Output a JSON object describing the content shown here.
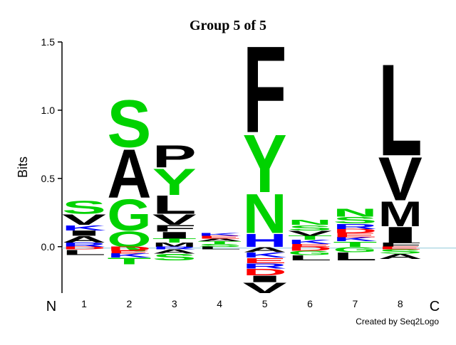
{
  "chart_data": {
    "type": "logo",
    "title": "Group 5 of 5",
    "y_label": "Bits",
    "start_label": "N",
    "end_label": "C",
    "credit": "Created by Seq2Logo",
    "ylim": [
      -0.34,
      1.5
    ],
    "yticks": [
      {
        "value": 0,
        "label": "0.0"
      },
      0.5,
      {
        "value": 1,
        "label": "1.0"
      },
      1.5
    ],
    "categories": [
      "1",
      "2",
      "3",
      "4",
      "5",
      "6",
      "7",
      "8"
    ],
    "stacks": [
      {
        "positive": [
          {
            "letter": "R",
            "color": "#0000ff",
            "bits": 0.03
          },
          {
            "letter": "A",
            "color": "#000000",
            "bits": 0.05
          },
          {
            "letter": "I",
            "color": "#000000",
            "bits": 0.04
          },
          {
            "letter": "K",
            "color": "#0000ff",
            "bits": 0.04
          },
          {
            "letter": "V",
            "color": "#000000",
            "bits": 0.08
          },
          {
            "letter": "S",
            "color": "#00d200",
            "bits": 0.1
          }
        ],
        "negative": [
          {
            "letter": "D",
            "color": "#ff0000",
            "bits": 0.02
          },
          {
            "letter": "L",
            "color": "#000000",
            "bits": 0.04
          }
        ]
      },
      {
        "positive": [
          {
            "letter": "Q",
            "color": "#00d200",
            "bits": 0.12
          },
          {
            "letter": "G",
            "color": "#00d200",
            "bits": 0.24
          },
          {
            "letter": "A",
            "color": "#000000",
            "bits": 0.37
          },
          {
            "letter": "S",
            "color": "#00d200",
            "bits": 0.36
          }
        ],
        "negative": [
          {
            "letter": "D",
            "color": "#ff0000",
            "bits": 0.03
          },
          {
            "letter": "E",
            "color": "#ff0000",
            "bits": 0.02
          },
          {
            "letter": "K",
            "color": "#0000ff",
            "bits": 0.03
          },
          {
            "letter": "T",
            "color": "#00d200",
            "bits": 0.05
          }
        ]
      },
      {
        "positive": [
          {
            "letter": "M",
            "color": "#000000",
            "bits": 0.03
          },
          {
            "letter": "T",
            "color": "#00d200",
            "bits": 0.03
          },
          {
            "letter": "I",
            "color": "#000000",
            "bits": 0.05
          },
          {
            "letter": "F",
            "color": "#000000",
            "bits": 0.05
          },
          {
            "letter": "V",
            "color": "#000000",
            "bits": 0.08
          },
          {
            "letter": "L",
            "color": "#000000",
            "bits": 0.14
          },
          {
            "letter": "Y",
            "color": "#00d200",
            "bits": 0.2
          },
          {
            "letter": "P",
            "color": "#000000",
            "bits": 0.17
          }
        ],
        "negative": [
          {
            "letter": "R",
            "color": "#0000ff",
            "bits": 0.02
          },
          {
            "letter": "A",
            "color": "#000000",
            "bits": 0.03
          },
          {
            "letter": "S",
            "color": "#00d200",
            "bits": 0.05
          }
        ]
      },
      {
        "positive": [
          {
            "letter": "S",
            "color": "#00d200",
            "bits": 0.02
          },
          {
            "letter": "T",
            "color": "#00d200",
            "bits": 0.02
          },
          {
            "letter": "A",
            "color": "#000000",
            "bits": 0.02
          },
          {
            "letter": "E",
            "color": "#ff0000",
            "bits": 0.02
          },
          {
            "letter": "K",
            "color": "#0000ff",
            "bits": 0.02
          }
        ],
        "negative": [
          {
            "letter": "L",
            "color": "#000000",
            "bits": 0.02
          }
        ]
      },
      {
        "positive": [
          {
            "letter": "H",
            "color": "#0000ff",
            "bits": 0.1
          },
          {
            "letter": "N",
            "color": "#00d200",
            "bits": 0.3
          },
          {
            "letter": "Y",
            "color": "#00d200",
            "bits": 0.44
          },
          {
            "letter": "F",
            "color": "#000000",
            "bits": 0.66
          }
        ],
        "negative": [
          {
            "letter": "A",
            "color": "#000000",
            "bits": 0.04
          },
          {
            "letter": "K",
            "color": "#0000ff",
            "bits": 0.04
          },
          {
            "letter": "E",
            "color": "#ff0000",
            "bits": 0.04
          },
          {
            "letter": "R",
            "color": "#0000ff",
            "bits": 0.04
          },
          {
            "letter": "D",
            "color": "#ff0000",
            "bits": 0.05
          },
          {
            "letter": "I",
            "color": "#000000",
            "bits": 0.05
          },
          {
            "letter": "V",
            "color": "#000000",
            "bits": 0.08
          }
        ]
      },
      {
        "positive": [
          {
            "letter": "E",
            "color": "#ff0000",
            "bits": 0.02
          },
          {
            "letter": "K",
            "color": "#0000ff",
            "bits": 0.03
          },
          {
            "letter": "T",
            "color": "#00d200",
            "bits": 0.03
          },
          {
            "letter": "V",
            "color": "#000000",
            "bits": 0.04
          },
          {
            "letter": "S",
            "color": "#00d200",
            "bits": 0.04
          },
          {
            "letter": "N",
            "color": "#00d200",
            "bits": 0.04
          }
        ],
        "negative": [
          {
            "letter": "D",
            "color": "#ff0000",
            "bits": 0.03
          },
          {
            "letter": "G",
            "color": "#00d200",
            "bits": 0.03
          },
          {
            "letter": "L",
            "color": "#000000",
            "bits": 0.04
          }
        ]
      },
      {
        "positive": [
          {
            "letter": "T",
            "color": "#00d200",
            "bits": 0.04
          },
          {
            "letter": "K",
            "color": "#0000ff",
            "bits": 0.03
          },
          {
            "letter": "E",
            "color": "#ff0000",
            "bits": 0.03
          },
          {
            "letter": "D",
            "color": "#ff0000",
            "bits": 0.03
          },
          {
            "letter": "R",
            "color": "#0000ff",
            "bits": 0.04
          },
          {
            "letter": "S",
            "color": "#00d200",
            "bits": 0.05
          },
          {
            "letter": "N",
            "color": "#00d200",
            "bits": 0.06
          }
        ],
        "negative": [
          {
            "letter": "G",
            "color": "#00d200",
            "bits": 0.04
          },
          {
            "letter": "L",
            "color": "#000000",
            "bits": 0.06
          }
        ]
      },
      {
        "positive": [
          {
            "letter": "F",
            "color": "#000000",
            "bits": 0.03
          },
          {
            "letter": "I",
            "color": "#000000",
            "bits": 0.12
          },
          {
            "letter": "M",
            "color": "#000000",
            "bits": 0.19
          },
          {
            "letter": "V",
            "color": "#000000",
            "bits": 0.33
          },
          {
            "letter": "L",
            "color": "#000000",
            "bits": 0.7
          }
        ],
        "negative": [
          {
            "letter": "E",
            "color": "#ff0000",
            "bits": 0.02
          },
          {
            "letter": "S",
            "color": "#00d200",
            "bits": 0.03
          },
          {
            "letter": "A",
            "color": "#000000",
            "bits": 0.04
          }
        ]
      }
    ]
  }
}
